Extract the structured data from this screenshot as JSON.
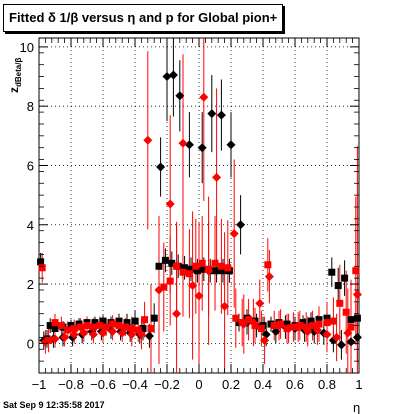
{
  "title": "Fitted δ 1/β versus η and p for Global pion+",
  "datestamp": "Sat Sep  9 12:35:58 2017",
  "chart_data": {
    "type": "scatter",
    "title": "Fitted δ 1/β versus η and p for Global pion+",
    "xlabel": "η",
    "ylabel": "z",
    "ylabel_subscript": "dBeta/β",
    "xlim": [
      -1,
      1
    ],
    "ylim": [
      -1,
      10.3
    ],
    "x_ticks": [
      -1,
      -0.8,
      -0.6,
      -0.4,
      -0.2,
      0,
      0.2,
      0.4,
      0.6,
      0.8,
      1
    ],
    "x_tick_labels": [
      "−1",
      "−0.8",
      "−0.6",
      "−0.4",
      "−0.2",
      "0",
      "0.2",
      "0.4",
      "0.6",
      "0.8",
      "1"
    ],
    "y_ticks": [
      0,
      2,
      4,
      6,
      8,
      10
    ],
    "y_tick_labels": [
      "0",
      "2",
      "4",
      "6",
      "8",
      "10"
    ],
    "grid": true,
    "colors": {
      "black": "#000000",
      "red": "#ff0000"
    },
    "series": [
      {
        "marker": "square",
        "color": "#000000",
        "points": [
          {
            "x": -0.99,
            "y": 2.75,
            "e": 0.3
          },
          {
            "x": -0.95,
            "y": 0.15,
            "e": 0.3
          },
          {
            "x": -0.93,
            "y": 0.6,
            "e": 0.25
          },
          {
            "x": -0.9,
            "y": 0.5,
            "e": 0.2
          },
          {
            "x": -0.85,
            "y": 0.55,
            "e": 0.2
          },
          {
            "x": -0.8,
            "y": 0.6,
            "e": 0.2
          },
          {
            "x": -0.75,
            "y": 0.65,
            "e": 0.2
          },
          {
            "x": -0.7,
            "y": 0.7,
            "e": 0.2
          },
          {
            "x": -0.65,
            "y": 0.7,
            "e": 0.2
          },
          {
            "x": -0.6,
            "y": 0.75,
            "e": 0.2
          },
          {
            "x": -0.55,
            "y": 0.7,
            "e": 0.2
          },
          {
            "x": -0.5,
            "y": 0.75,
            "e": 0.25
          },
          {
            "x": -0.45,
            "y": 0.7,
            "e": 0.3
          },
          {
            "x": -0.4,
            "y": 0.75,
            "e": 0.35
          },
          {
            "x": -0.35,
            "y": 0.5,
            "e": 0.4
          },
          {
            "x": -0.28,
            "y": 0.85,
            "e": 0.5
          },
          {
            "x": -0.25,
            "y": 2.6,
            "e": 0.4
          },
          {
            "x": -0.21,
            "y": 2.8,
            "e": 0.4
          },
          {
            "x": -0.17,
            "y": 2.7,
            "e": 0.4
          },
          {
            "x": -0.13,
            "y": 2.6,
            "e": 0.4
          },
          {
            "x": -0.09,
            "y": 2.55,
            "e": 0.4
          },
          {
            "x": -0.05,
            "y": 2.5,
            "e": 0.4
          },
          {
            "x": -0.01,
            "y": 2.45,
            "e": 0.4
          },
          {
            "x": 0.03,
            "y": 2.5,
            "e": 0.4
          },
          {
            "x": 0.07,
            "y": 2.45,
            "e": 0.4
          },
          {
            "x": 0.11,
            "y": 2.45,
            "e": 0.4
          },
          {
            "x": 0.15,
            "y": 2.45,
            "e": 0.4
          },
          {
            "x": 0.19,
            "y": 2.45,
            "e": 0.4
          },
          {
            "x": 0.25,
            "y": 0.7,
            "e": 0.3
          },
          {
            "x": 0.3,
            "y": 0.85,
            "e": 0.3
          },
          {
            "x": 0.35,
            "y": 0.75,
            "e": 0.3
          },
          {
            "x": 0.4,
            "y": 0.6,
            "e": 0.3
          },
          {
            "x": 0.45,
            "y": 0.65,
            "e": 0.25
          },
          {
            "x": 0.5,
            "y": 0.7,
            "e": 0.25
          },
          {
            "x": 0.55,
            "y": 0.65,
            "e": 0.25
          },
          {
            "x": 0.6,
            "y": 0.6,
            "e": 0.25
          },
          {
            "x": 0.65,
            "y": 0.7,
            "e": 0.25
          },
          {
            "x": 0.7,
            "y": 0.75,
            "e": 0.3
          },
          {
            "x": 0.75,
            "y": 0.8,
            "e": 0.3
          },
          {
            "x": 0.8,
            "y": 0.85,
            "e": 0.3
          },
          {
            "x": 0.83,
            "y": 2.4,
            "e": 0.5
          },
          {
            "x": 0.87,
            "y": 1.95,
            "e": 0.6
          },
          {
            "x": 0.91,
            "y": 2.2,
            "e": 0.6
          },
          {
            "x": 0.95,
            "y": 0.8,
            "e": 0.5
          },
          {
            "x": 0.99,
            "y": 0.85,
            "e": 0.5
          }
        ]
      },
      {
        "marker": "diamond",
        "color": "#000000",
        "points": [
          {
            "x": -0.97,
            "y": 0.1,
            "e": 0.3
          },
          {
            "x": -0.91,
            "y": 0.15,
            "e": 0.3
          },
          {
            "x": -0.85,
            "y": 0.2,
            "e": 0.3
          },
          {
            "x": -0.79,
            "y": 0.2,
            "e": 0.3
          },
          {
            "x": -0.73,
            "y": 0.3,
            "e": 0.3
          },
          {
            "x": -0.67,
            "y": 0.4,
            "e": 0.3
          },
          {
            "x": -0.61,
            "y": 0.4,
            "e": 0.3
          },
          {
            "x": -0.55,
            "y": 0.45,
            "e": 0.3
          },
          {
            "x": -0.49,
            "y": 0.4,
            "e": 0.3
          },
          {
            "x": -0.43,
            "y": 0.35,
            "e": 0.3
          },
          {
            "x": -0.37,
            "y": 0.3,
            "e": 0.3
          },
          {
            "x": -0.31,
            "y": 0.25,
            "e": 0.4
          },
          {
            "x": -0.24,
            "y": 5.95,
            "e": 1.0
          },
          {
            "x": -0.2,
            "y": 9.0,
            "e": 1.5
          },
          {
            "x": -0.16,
            "y": 9.05,
            "e": 1.4
          },
          {
            "x": -0.12,
            "y": 8.35,
            "e": 1.2
          },
          {
            "x": -0.06,
            "y": 6.7,
            "e": 1.1
          },
          {
            "x": 0.02,
            "y": 6.6,
            "e": 1.2
          },
          {
            "x": 0.08,
            "y": 7.75,
            "e": 1.3
          },
          {
            "x": 0.14,
            "y": 7.7,
            "e": 1.2
          },
          {
            "x": 0.2,
            "y": 6.7,
            "e": 1.1
          },
          {
            "x": 0.26,
            "y": 4.0,
            "e": 1.0
          },
          {
            "x": 0.3,
            "y": 0.7,
            "e": 0.4
          },
          {
            "x": 0.36,
            "y": 0.6,
            "e": 0.4
          },
          {
            "x": 0.42,
            "y": 0.3,
            "e": 0.4
          },
          {
            "x": 0.48,
            "y": 0.4,
            "e": 0.4
          },
          {
            "x": 0.54,
            "y": 0.55,
            "e": 0.4
          },
          {
            "x": 0.6,
            "y": 0.5,
            "e": 0.4
          },
          {
            "x": 0.66,
            "y": 0.45,
            "e": 0.4
          },
          {
            "x": 0.72,
            "y": 0.4,
            "e": 0.4
          },
          {
            "x": 0.78,
            "y": 0.35,
            "e": 0.4
          },
          {
            "x": 0.84,
            "y": 0.1,
            "e": 0.4
          },
          {
            "x": 0.89,
            "y": -0.05,
            "e": 0.5
          },
          {
            "x": 0.95,
            "y": 0.05,
            "e": 0.6
          },
          {
            "x": 0.99,
            "y": 0.2,
            "e": 0.8
          }
        ]
      },
      {
        "marker": "square",
        "color": "#ff0000",
        "points": [
          {
            "x": -0.98,
            "y": 2.55,
            "e": 0.5
          },
          {
            "x": -0.94,
            "y": 0.1,
            "e": 0.4
          },
          {
            "x": -0.9,
            "y": 0.7,
            "e": 0.3
          },
          {
            "x": -0.86,
            "y": 0.6,
            "e": 0.3
          },
          {
            "x": -0.82,
            "y": 0.45,
            "e": 0.3
          },
          {
            "x": -0.78,
            "y": 0.5,
            "e": 0.3
          },
          {
            "x": -0.74,
            "y": 0.55,
            "e": 0.3
          },
          {
            "x": -0.7,
            "y": 0.6,
            "e": 0.3
          },
          {
            "x": -0.66,
            "y": 0.55,
            "e": 0.3
          },
          {
            "x": -0.62,
            "y": 0.6,
            "e": 0.3
          },
          {
            "x": -0.58,
            "y": 0.55,
            "e": 0.3
          },
          {
            "x": -0.54,
            "y": 0.65,
            "e": 0.3
          },
          {
            "x": -0.5,
            "y": 0.6,
            "e": 0.3
          },
          {
            "x": -0.46,
            "y": 0.55,
            "e": 0.3
          },
          {
            "x": -0.42,
            "y": 0.5,
            "e": 0.4
          },
          {
            "x": -0.38,
            "y": 0.45,
            "e": 0.4
          },
          {
            "x": -0.34,
            "y": 0.8,
            "e": 0.6
          },
          {
            "x": -0.3,
            "y": 0.5,
            "e": 1.5
          },
          {
            "x": -0.22,
            "y": 1.9,
            "e": 1.5
          },
          {
            "x": -0.18,
            "y": 2.1,
            "e": 1.5
          },
          {
            "x": -0.14,
            "y": 2.6,
            "e": 1.5
          },
          {
            "x": -0.1,
            "y": 2.4,
            "e": 1.5
          },
          {
            "x": -0.06,
            "y": 2.35,
            "e": 1.5
          },
          {
            "x": -0.02,
            "y": 2.6,
            "e": 1.6
          },
          {
            "x": 0.02,
            "y": 2.7,
            "e": 1.6
          },
          {
            "x": 0.06,
            "y": 2.5,
            "e": 1.6
          },
          {
            "x": 0.1,
            "y": 2.7,
            "e": 1.6
          },
          {
            "x": 0.14,
            "y": 2.6,
            "e": 1.6
          },
          {
            "x": 0.18,
            "y": 2.55,
            "e": 1.6
          },
          {
            "x": 0.23,
            "y": 0.85,
            "e": 1.0
          },
          {
            "x": 0.27,
            "y": 0.7,
            "e": 0.8
          },
          {
            "x": 0.31,
            "y": 0.8,
            "e": 0.7
          },
          {
            "x": 0.35,
            "y": 0.6,
            "e": 0.6
          },
          {
            "x": 0.39,
            "y": 0.5,
            "e": 0.6
          },
          {
            "x": 0.43,
            "y": 2.65,
            "e": 0.9
          },
          {
            "x": 0.47,
            "y": 0.6,
            "e": 0.5
          },
          {
            "x": 0.51,
            "y": 0.65,
            "e": 0.5
          },
          {
            "x": 0.55,
            "y": 0.5,
            "e": 0.5
          },
          {
            "x": 0.59,
            "y": 0.55,
            "e": 0.5
          },
          {
            "x": 0.63,
            "y": 0.6,
            "e": 0.5
          },
          {
            "x": 0.67,
            "y": 0.55,
            "e": 0.5
          },
          {
            "x": 0.71,
            "y": 0.6,
            "e": 0.5
          },
          {
            "x": 0.75,
            "y": 0.65,
            "e": 0.6
          },
          {
            "x": 0.8,
            "y": 0.7,
            "e": 0.7
          },
          {
            "x": 0.84,
            "y": 0.75,
            "e": 0.8
          },
          {
            "x": 0.88,
            "y": 1.35,
            "e": 1.3
          },
          {
            "x": 0.92,
            "y": 1.05,
            "e": 1.4
          },
          {
            "x": 0.95,
            "y": 0.55,
            "e": 1.6
          },
          {
            "x": 0.98,
            "y": 2.45,
            "e": 2.5
          }
        ]
      },
      {
        "marker": "diamond",
        "color": "#ff0000",
        "points": [
          {
            "x": -0.96,
            "y": 0.05,
            "e": 0.4
          },
          {
            "x": -0.9,
            "y": 0.15,
            "e": 0.3
          },
          {
            "x": -0.84,
            "y": 0.2,
            "e": 0.3
          },
          {
            "x": -0.78,
            "y": 0.3,
            "e": 0.3
          },
          {
            "x": -0.72,
            "y": 0.35,
            "e": 0.3
          },
          {
            "x": -0.66,
            "y": 0.3,
            "e": 0.3
          },
          {
            "x": -0.6,
            "y": 0.35,
            "e": 0.3
          },
          {
            "x": -0.54,
            "y": 0.4,
            "e": 0.3
          },
          {
            "x": -0.48,
            "y": 0.35,
            "e": 0.3
          },
          {
            "x": -0.42,
            "y": 0.3,
            "e": 0.4
          },
          {
            "x": -0.36,
            "y": 0.3,
            "e": 0.5
          },
          {
            "x": -0.32,
            "y": 6.85,
            "e": 3.0
          },
          {
            "x": -0.25,
            "y": 1.8,
            "e": 2.5
          },
          {
            "x": -0.18,
            "y": 4.7,
            "e": 3.0
          },
          {
            "x": -0.14,
            "y": 1.0,
            "e": 3.0
          },
          {
            "x": -0.1,
            "y": 6.75,
            "e": 3.0
          },
          {
            "x": -0.04,
            "y": 1.95,
            "e": 2.5
          },
          {
            "x": 0.0,
            "y": 1.6,
            "e": 2.5
          },
          {
            "x": 0.03,
            "y": 8.3,
            "e": 3.5
          },
          {
            "x": 0.06,
            "y": 2.45,
            "e": 2.5
          },
          {
            "x": 0.11,
            "y": 5.6,
            "e": 3.0
          },
          {
            "x": 0.16,
            "y": 1.25,
            "e": 2.5
          },
          {
            "x": 0.22,
            "y": 3.7,
            "e": 2.5
          },
          {
            "x": 0.28,
            "y": 0.65,
            "e": 1.0
          },
          {
            "x": 0.34,
            "y": 0.7,
            "e": 0.8
          },
          {
            "x": 0.38,
            "y": 1.35,
            "e": 0.8
          },
          {
            "x": 0.41,
            "y": 0.1,
            "e": 0.8
          },
          {
            "x": 0.44,
            "y": 2.25,
            "e": 0.9
          },
          {
            "x": 0.5,
            "y": 0.6,
            "e": 0.5
          },
          {
            "x": 0.56,
            "y": 0.5,
            "e": 0.5
          },
          {
            "x": 0.62,
            "y": 0.55,
            "e": 0.5
          },
          {
            "x": 0.68,
            "y": 0.4,
            "e": 0.5
          },
          {
            "x": 0.74,
            "y": 0.45,
            "e": 0.5
          },
          {
            "x": 0.8,
            "y": 0.3,
            "e": 0.6
          },
          {
            "x": 0.86,
            "y": 0.2,
            "e": 0.8
          },
          {
            "x": 0.93,
            "y": 0.35,
            "e": 1.5
          },
          {
            "x": 0.99,
            "y": 1.65,
            "e": 5.0
          }
        ]
      }
    ]
  }
}
